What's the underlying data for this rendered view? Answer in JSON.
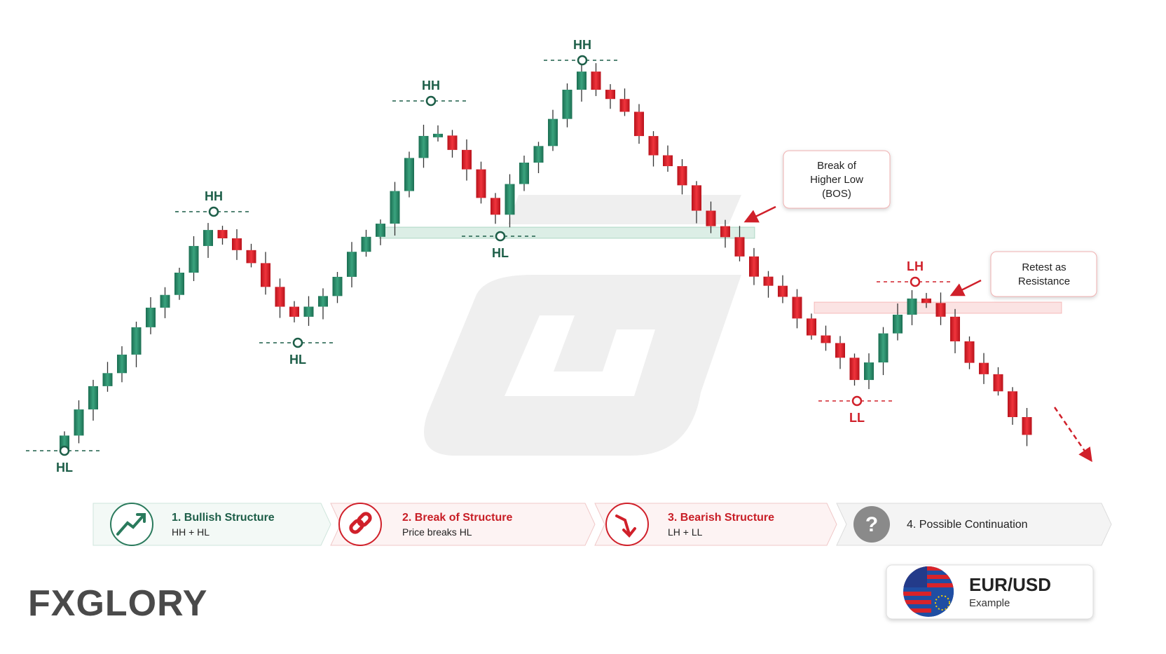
{
  "markers": [
    "HL",
    "HH",
    "HL",
    "HH",
    "HL",
    "HH",
    "LH",
    "LL"
  ],
  "callouts": [
    {
      "lines": [
        "Break of",
        "Higher Low",
        "(BOS)"
      ]
    },
    {
      "lines": [
        "Retest as",
        "Resistance"
      ]
    }
  ],
  "steps": [
    {
      "title": "1. Bullish Structure",
      "subtitle": "HH + HL"
    },
    {
      "title": "2. Break of Structure",
      "subtitle": "Price breaks HL"
    },
    {
      "title": "3. Bearish Structure",
      "subtitle": "LH + LL"
    },
    {
      "title": "4. Possible Continuation"
    }
  ],
  "logo": "FXGLORY",
  "badge": {
    "pair": "EUR/USD",
    "note": "Example"
  }
}
